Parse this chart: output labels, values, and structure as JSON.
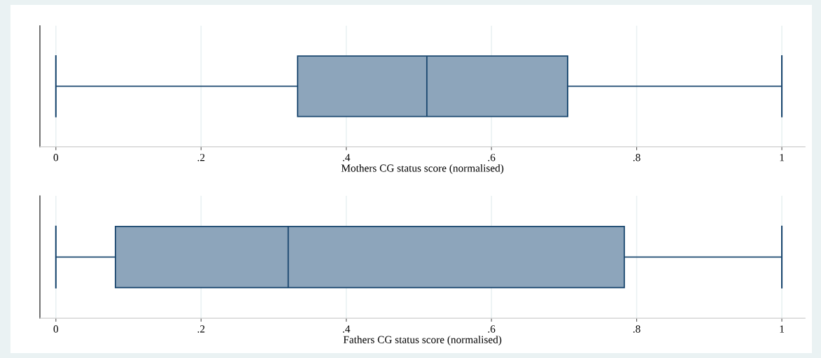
{
  "chart_data": [
    {
      "type": "box",
      "orientation": "horizontal",
      "categories": [
        null
      ],
      "xlabel": "Mothers CG status score (normalised)",
      "color": "#8da5bb",
      "boxes": [
        {
          "low": 0,
          "q1": 0.333,
          "median": 0.511,
          "q3": 0.705,
          "high": 1
        }
      ],
      "xlim": [
        -0.022,
        1.032
      ],
      "xticks": [
        {
          "value": 0,
          "label": "0"
        },
        {
          "value": 0.2,
          "label": ".2"
        },
        {
          "value": 0.4,
          "label": ".4"
        },
        {
          "value": 0.6,
          "label": ".6"
        },
        {
          "value": 0.8,
          "label": ".8"
        },
        {
          "value": 1,
          "label": "1"
        }
      ],
      "grid": "x",
      "tick_labels": "x"
    },
    {
      "type": "box",
      "orientation": "horizontal",
      "categories": [
        null
      ],
      "xlabel": "Fathers CG status score (normalised)",
      "color": "#8da5bb",
      "boxes": [
        {
          "low": 0,
          "q1": 0.082,
          "median": 0.32,
          "q3": 0.783,
          "high": 1
        }
      ],
      "xlim": [
        -0.022,
        1.032
      ],
      "xticks": [
        {
          "value": 0,
          "label": "0"
        },
        {
          "value": 0.2,
          "label": ".2"
        },
        {
          "value": 0.4,
          "label": ".4"
        },
        {
          "value": 0.6,
          "label": ".6"
        },
        {
          "value": 0.8,
          "label": ".8"
        },
        {
          "value": 1,
          "label": "1"
        }
      ],
      "grid": "x",
      "tick_labels": "x"
    }
  ]
}
